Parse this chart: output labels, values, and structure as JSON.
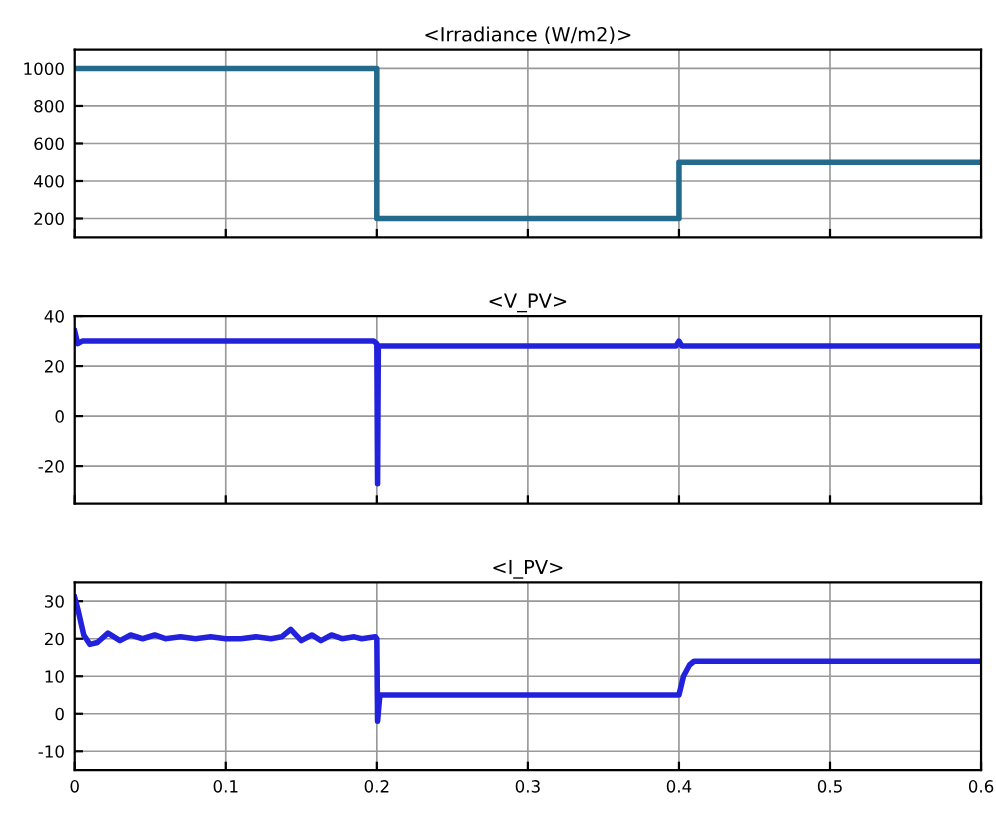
{
  "chart_data": [
    {
      "type": "line",
      "title": "<Irradiance (W/m2)>",
      "xlim": [
        0,
        0.6
      ],
      "xticks": [
        0,
        0.1,
        0.2,
        0.3,
        0.4,
        0.5,
        0.6
      ],
      "ylim": [
        100,
        1100
      ],
      "yticks": [
        200,
        400,
        600,
        800,
        1000
      ],
      "grid": true,
      "tick_labels": "y",
      "series": [
        {
          "color": "#246a8c",
          "x": [
            0,
            0.2,
            0.2,
            0.4,
            0.4,
            0.6
          ],
          "values": [
            1000,
            1000,
            200,
            200,
            500,
            500
          ]
        }
      ]
    },
    {
      "type": "line",
      "title": "<V_PV>",
      "xlim": [
        0,
        0.6
      ],
      "xticks": [
        0,
        0.1,
        0.2,
        0.3,
        0.4,
        0.5,
        0.6
      ],
      "ylim": [
        -35,
        40
      ],
      "yticks": [
        -20,
        0,
        20,
        40
      ],
      "grid": true,
      "tick_labels": "y",
      "series": [
        {
          "color": "#2222dd",
          "x": [
            0,
            0.002,
            0.005,
            0.05,
            0.1,
            0.15,
            0.198,
            0.2,
            0.2005,
            0.201,
            0.203,
            0.25,
            0.3,
            0.35,
            0.398,
            0.4,
            0.402,
            0.405,
            0.45,
            0.5,
            0.55,
            0.6
          ],
          "values": [
            34,
            29,
            30,
            30,
            30,
            30,
            30,
            29,
            -27,
            28,
            28,
            28,
            28,
            28,
            28,
            30,
            28,
            28,
            28,
            28,
            28,
            28
          ]
        }
      ]
    },
    {
      "type": "line",
      "title": "<I_PV>",
      "xlim": [
        0,
        0.6
      ],
      "xticks": [
        0,
        0.1,
        0.2,
        0.3,
        0.4,
        0.5,
        0.6
      ],
      "ylim": [
        -15,
        35
      ],
      "yticks": [
        -10,
        0,
        10,
        20,
        30
      ],
      "grid": true,
      "series": [
        {
          "color": "#2222dd",
          "x": [
            0,
            0.002,
            0.006,
            0.01,
            0.015,
            0.022,
            0.03,
            0.037,
            0.045,
            0.053,
            0.06,
            0.07,
            0.08,
            0.09,
            0.1,
            0.11,
            0.12,
            0.13,
            0.137,
            0.143,
            0.15,
            0.157,
            0.163,
            0.17,
            0.177,
            0.185,
            0.19,
            0.199,
            0.2,
            0.2005,
            0.202,
            0.205,
            0.25,
            0.3,
            0.35,
            0.399,
            0.4,
            0.403,
            0.407,
            0.41,
            0.45,
            0.5,
            0.55,
            0.6
          ],
          "values": [
            31,
            28,
            21,
            18.5,
            19,
            21.5,
            19.5,
            21,
            20,
            21,
            20,
            20.5,
            20,
            20.5,
            20,
            20,
            20.5,
            20,
            20.5,
            22.5,
            19.5,
            21,
            19.5,
            21,
            20,
            20.5,
            20,
            20.5,
            20,
            -2,
            5,
            5,
            5,
            5,
            5,
            5,
            5,
            10,
            13,
            14,
            14,
            14,
            14,
            14
          ]
        }
      ]
    }
  ]
}
